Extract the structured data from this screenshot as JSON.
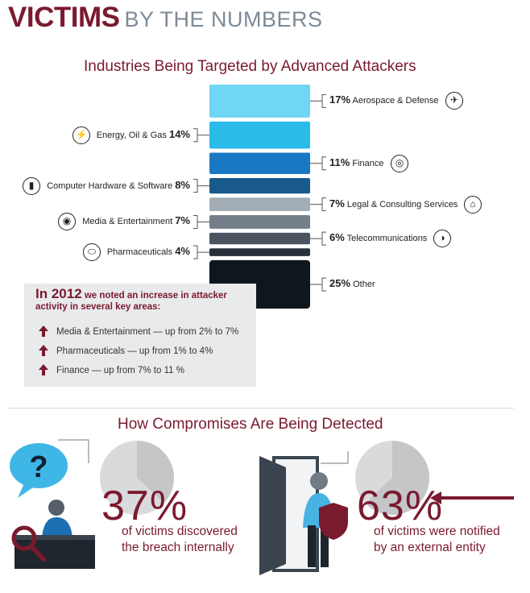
{
  "header": {
    "bold": "VICTIMS",
    "light": "BY THE NUMBERS"
  },
  "industries": {
    "title": "Industries Being Targeted by Advanced Attackers",
    "items": [
      {
        "label": "Aerospace & Defense",
        "pct": "17%",
        "value": 17,
        "side": "right",
        "icon": "airplane-icon",
        "color": "#6fd6f4"
      },
      {
        "label": "Energy, Oil & Gas",
        "pct": "14%",
        "value": 14,
        "side": "left",
        "icon": "lightning-icon",
        "color": "#2bbbe8"
      },
      {
        "label": "Finance",
        "pct": "11%",
        "value": 11,
        "side": "right",
        "icon": "coins-icon",
        "color": "#1878c4"
      },
      {
        "label": "Computer Hardware & Software",
        "pct": "8%",
        "value": 8,
        "side": "left",
        "icon": "phone-icon",
        "color": "#195a8c"
      },
      {
        "label": "Legal & Consulting Services",
        "pct": "7%",
        "value": 7,
        "side": "right",
        "icon": "bank-icon",
        "color": "#a3adb6"
      },
      {
        "label": "Media & Entertainment",
        "pct": "7%",
        "value": 7,
        "side": "left",
        "icon": "disc-icon",
        "color": "#747f89"
      },
      {
        "label": "Telecommunications",
        "pct": "6%",
        "value": 6,
        "side": "right",
        "icon": "satellite-icon",
        "color": "#4a5561"
      },
      {
        "label": "Pharmaceuticals",
        "pct": "4%",
        "value": 4,
        "side": "left",
        "icon": "pill-icon",
        "color": "#283139"
      },
      {
        "label": "Other",
        "pct": "25%",
        "value": 25,
        "side": "right",
        "icon": "",
        "color": "#0f171d"
      }
    ]
  },
  "callout": {
    "year": "In 2012",
    "text": "we noted an increase in attacker activity in several key areas:",
    "items": [
      "Media & Entertainment — up from 2% to 7%",
      "Pharmaceuticals — up from 1% to 4%",
      "Finance — up from 7% to 11 %"
    ]
  },
  "detection": {
    "title": "How Compromises Are Being Detected",
    "internal": {
      "pct": "37%",
      "value": 37,
      "caption_line1": "of victims discovered",
      "caption_line2": "the breach internally"
    },
    "external": {
      "pct": "63%",
      "value": 63,
      "caption_line1": "of victims were notified",
      "caption_line2": "by an external entity"
    }
  },
  "chart_data": [
    {
      "type": "bar",
      "title": "Industries Being Targeted by Advanced Attackers",
      "categories": [
        "Aerospace & Defense",
        "Energy, Oil & Gas",
        "Finance",
        "Computer Hardware & Software",
        "Legal & Consulting Services",
        "Media & Entertainment",
        "Telecommunications",
        "Pharmaceuticals",
        "Other"
      ],
      "values": [
        17,
        14,
        11,
        8,
        7,
        7,
        6,
        4,
        25
      ],
      "unit": "%"
    },
    {
      "type": "pie",
      "title": "How Compromises Are Being Detected",
      "categories": [
        "of victims discovered the breach internally",
        "of victims were notified by an external entity"
      ],
      "values": [
        37,
        63
      ],
      "unit": "%"
    }
  ],
  "colors": {
    "brand": "#7a1a2e",
    "pie_light": "#d9dadb",
    "pie_mid": "#c4c6c8"
  }
}
